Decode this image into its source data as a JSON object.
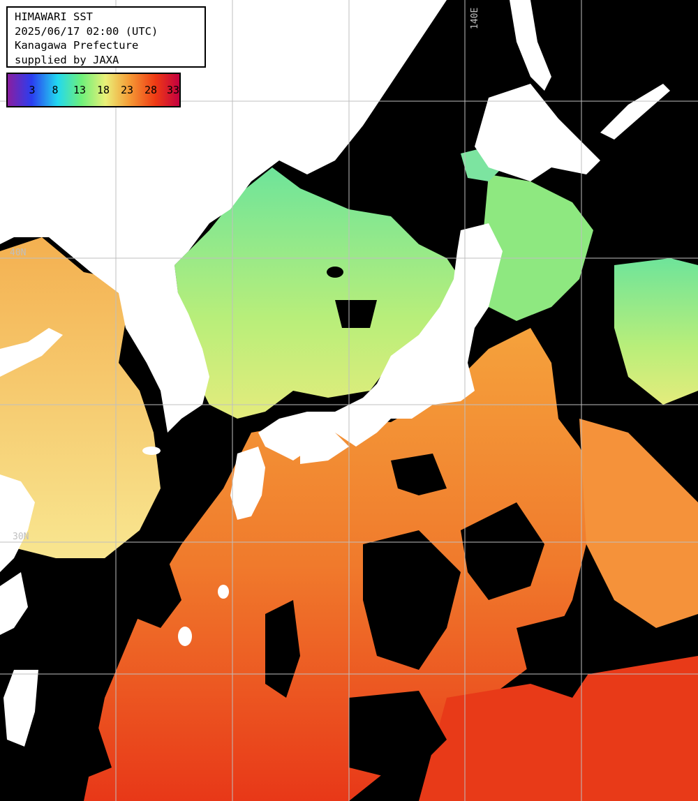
{
  "header": {
    "title": "HIMAWARI SST",
    "datetime": "2025/06/17 02:00 (UTC)",
    "region": "Kanagawa Prefecture",
    "credit": "supplied by JAXA"
  },
  "legend": {
    "ticks": [
      "3",
      "8",
      "13",
      "18",
      "23",
      "28",
      "33"
    ],
    "colors": [
      "#8a1ea0",
      "#2a3ef0",
      "#22d8f0",
      "#6ef07a",
      "#eaf078",
      "#f59a35",
      "#ef3a14",
      "#c40040"
    ]
  },
  "grid": {
    "lon_labels": [
      "140E"
    ],
    "lat_labels": [
      "40N",
      "30N"
    ],
    "color": "#bfbfbf"
  },
  "map_colors": {
    "land": "#ffffff",
    "cloud_no_data": "#000000",
    "sst_cold": "#7be06a",
    "sst_mid": "#d8e878",
    "sst_warm": "#f09038",
    "sst_hot": "#e84a18"
  }
}
